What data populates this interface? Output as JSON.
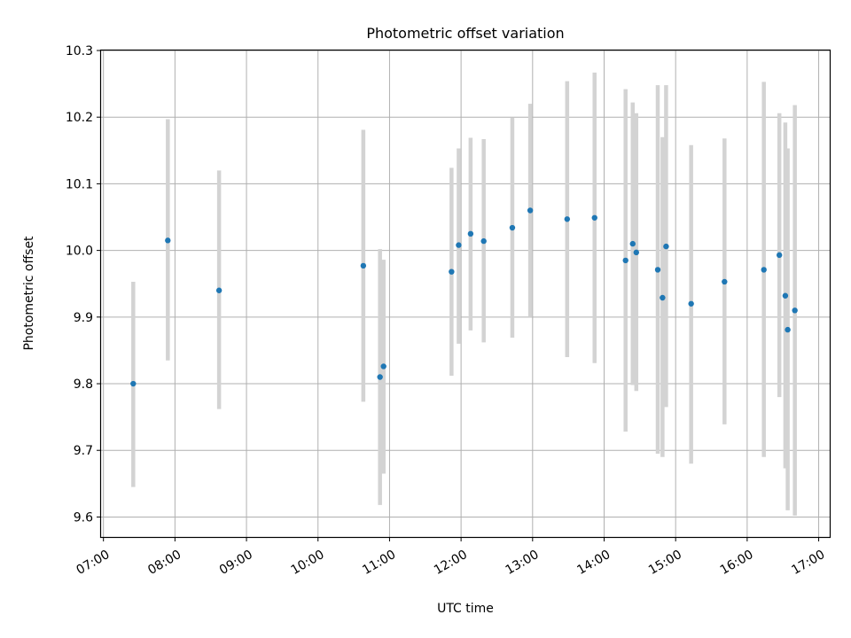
{
  "chart_data": {
    "type": "scatter",
    "title": "Photometric offset variation",
    "xlabel": "UTC time",
    "ylabel": "Photometric offset",
    "x_ticks": [
      "07:00",
      "08:00",
      "09:00",
      "10:00",
      "11:00",
      "12:00",
      "13:00",
      "14:00",
      "15:00",
      "16:00",
      "17:00"
    ],
    "y_ticks": [
      "9.6",
      "9.7",
      "9.8",
      "9.9",
      "10.0",
      "10.1",
      "10.2",
      "10.3"
    ],
    "xlim": [
      "06:58",
      "17:10"
    ],
    "ylim": [
      9.57,
      10.3
    ],
    "grid": true,
    "marker_color": "#1f77b4",
    "errorbar_color": "#d3d3d3",
    "points": [
      {
        "time": "07:25",
        "value": 9.8,
        "lower": 9.645,
        "upper": 9.953
      },
      {
        "time": "07:54",
        "value": 10.015,
        "lower": 9.835,
        "upper": 10.197
      },
      {
        "time": "08:37",
        "value": 9.94,
        "lower": 9.762,
        "upper": 10.12
      },
      {
        "time": "10:38",
        "value": 9.977,
        "lower": 9.773,
        "upper": 10.181
      },
      {
        "time": "10:52",
        "value": 9.81,
        "lower": 9.618,
        "upper": 10.002
      },
      {
        "time": "10:55",
        "value": 9.826,
        "lower": 9.665,
        "upper": 9.986
      },
      {
        "time": "11:52",
        "value": 9.968,
        "lower": 9.812,
        "upper": 10.124
      },
      {
        "time": "11:58",
        "value": 10.008,
        "lower": 9.86,
        "upper": 10.153
      },
      {
        "time": "12:08",
        "value": 10.025,
        "lower": 9.88,
        "upper": 10.169
      },
      {
        "time": "12:19",
        "value": 10.014,
        "lower": 9.862,
        "upper": 10.167
      },
      {
        "time": "12:43",
        "value": 10.034,
        "lower": 9.869,
        "upper": 10.199
      },
      {
        "time": "12:58",
        "value": 10.06,
        "lower": 9.9,
        "upper": 10.22
      },
      {
        "time": "13:29",
        "value": 10.047,
        "lower": 9.84,
        "upper": 10.254
      },
      {
        "time": "13:52",
        "value": 10.049,
        "lower": 9.831,
        "upper": 10.267
      },
      {
        "time": "14:18",
        "value": 9.985,
        "lower": 9.728,
        "upper": 10.242
      },
      {
        "time": "14:24",
        "value": 10.01,
        "lower": 9.798,
        "upper": 10.222
      },
      {
        "time": "14:27",
        "value": 9.997,
        "lower": 9.789,
        "upper": 10.206
      },
      {
        "time": "14:45",
        "value": 9.971,
        "lower": 9.695,
        "upper": 10.248
      },
      {
        "time": "14:49",
        "value": 9.929,
        "lower": 9.69,
        "upper": 10.17
      },
      {
        "time": "14:52",
        "value": 10.006,
        "lower": 9.765,
        "upper": 10.248
      },
      {
        "time": "15:13",
        "value": 9.92,
        "lower": 9.68,
        "upper": 10.158
      },
      {
        "time": "15:41",
        "value": 9.953,
        "lower": 9.739,
        "upper": 10.168
      },
      {
        "time": "16:14",
        "value": 9.971,
        "lower": 9.69,
        "upper": 10.253
      },
      {
        "time": "16:27",
        "value": 9.993,
        "lower": 9.78,
        "upper": 10.206
      },
      {
        "time": "16:32",
        "value": 9.932,
        "lower": 9.673,
        "upper": 10.192
      },
      {
        "time": "16:34",
        "value": 9.881,
        "lower": 9.61,
        "upper": 10.153
      },
      {
        "time": "16:40",
        "value": 9.91,
        "lower": 9.602,
        "upper": 10.218
      }
    ]
  }
}
